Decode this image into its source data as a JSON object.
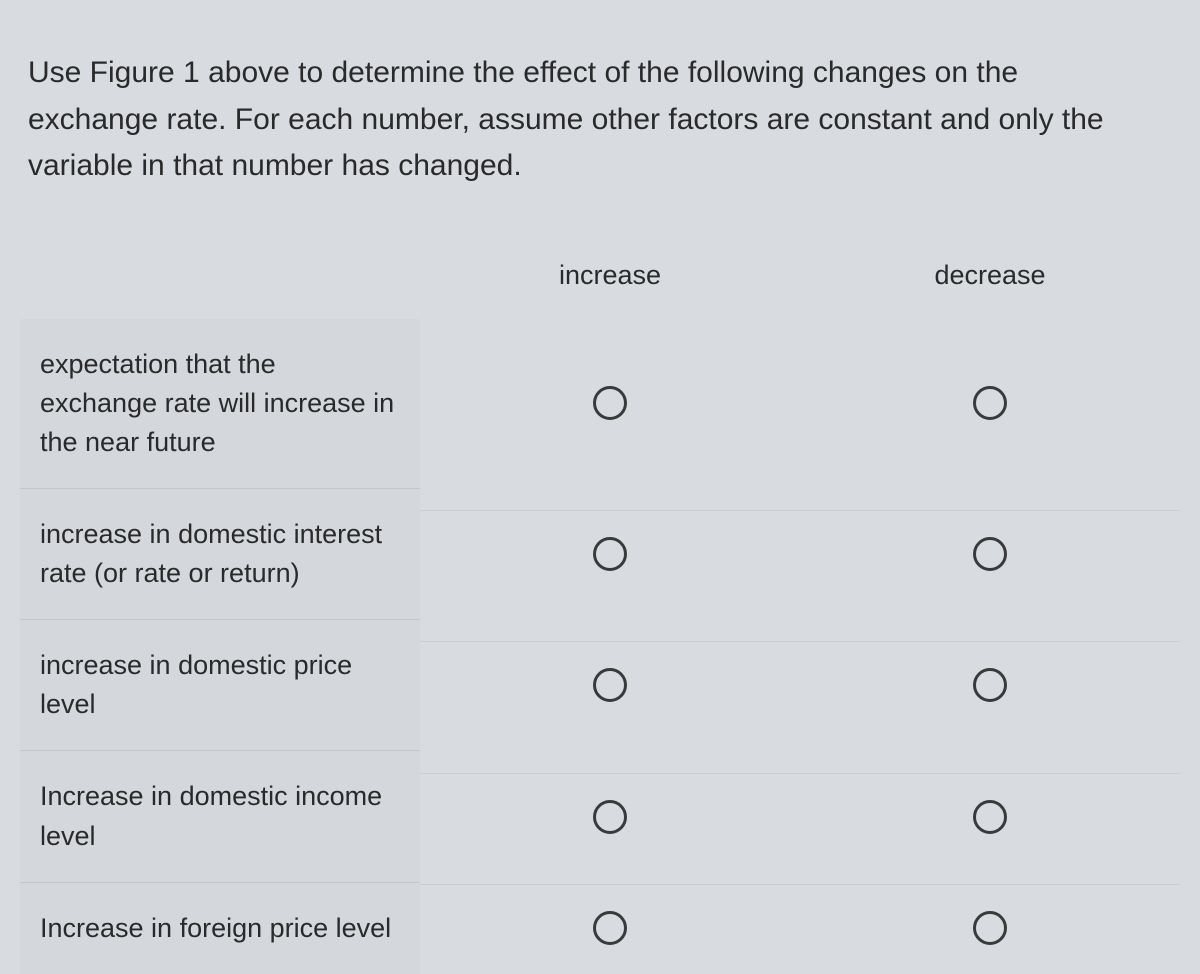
{
  "prompt": "Use Figure 1 above to determine the effect of the following changes on the exchange rate. For each number, assume other factors are constant and only the variable in that number has changed.",
  "columns": {
    "increase": "increase",
    "decrease": "decrease"
  },
  "rows": [
    {
      "label": "expectation that the exchange rate will increase in the near future"
    },
    {
      "label": "increase in domestic interest rate (or rate or return)"
    },
    {
      "label": "increase in domestic price level"
    },
    {
      "label": "Increase in domestic income level"
    },
    {
      "label": "Increase in foreign price level"
    }
  ]
}
